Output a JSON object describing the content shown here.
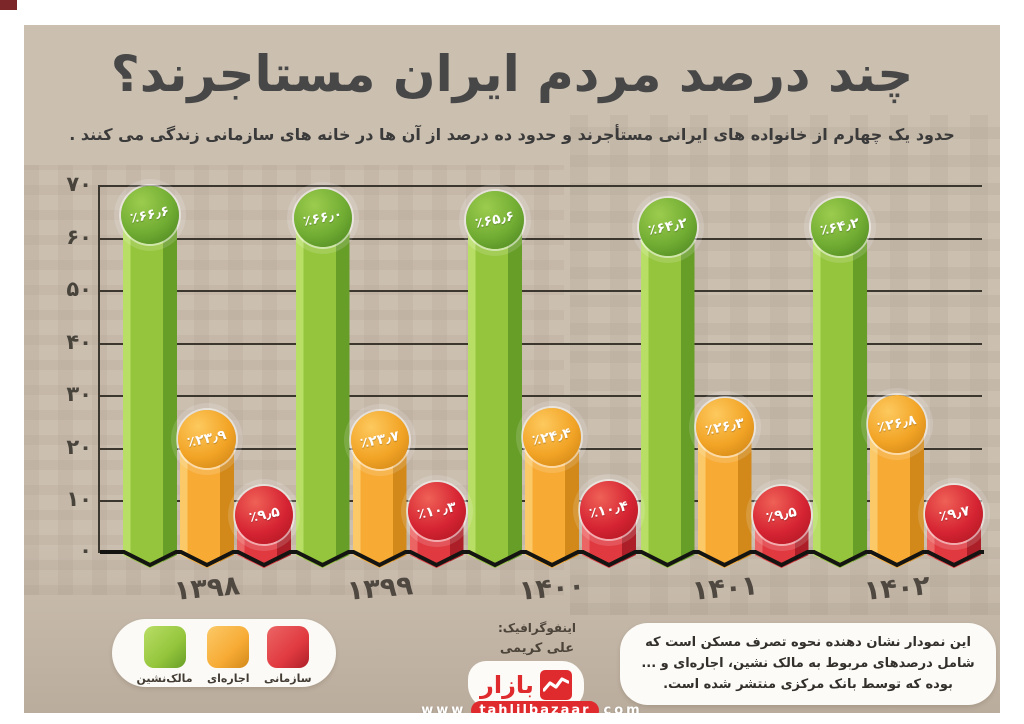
{
  "page": {
    "title": "چند درصد مردم ایران مستاجرند؟",
    "subtitle": "حدود یک چهارم از خانواده های ایرانی مستأجرند و حدود ده درصد از آن ها در خانه های سازمانی زندگی می کنند .",
    "credit_label": "اینفوگرافیک:",
    "credit_name": "علی کریمی",
    "note": "این نمودار نشان دهنده نحوه تصرف مسکن است که شامل درصدهای مربوط به مالک نشین، اجاره‌ای و ... بوده که توسط بانک مرکزی منتشر شده است.",
    "logo_text": "بازار",
    "url_www": "www",
    "url_domain": "tahlilbazaar",
    "url_tld": "com"
  },
  "colors": {
    "background": "#cbbfb0",
    "title_text": "#474747",
    "gridline": "#3b372f",
    "zigzag": "#141412",
    "logo_red": "#df2b2e"
  },
  "chart_data": {
    "type": "bar",
    "title": "چند درصد مردم ایران مستاجرند؟",
    "xlabel": "",
    "ylabel": "",
    "ylim": [
      0,
      70
    ],
    "yticks": [
      0,
      10,
      20,
      30,
      40,
      50,
      60,
      70
    ],
    "ytick_labels": [
      "۰",
      "۱۰",
      "۲۰",
      "۳۰",
      "۴۰",
      "۵۰",
      "۶۰",
      "۷۰"
    ],
    "categories": [
      "۱۳۹۸",
      "۱۳۹۹",
      "۱۴۰۰",
      "۱۴۰۱",
      "۱۴۰۲"
    ],
    "categories_latin": [
      "1398",
      "1399",
      "1400",
      "1401",
      "1402"
    ],
    "grid": true,
    "legend_position": "bottom-left",
    "series": [
      {
        "key": "owner",
        "name": "مالک‌نشین",
        "values": [
          66.6,
          66.0,
          65.6,
          64.2,
          64.2
        ],
        "labels": [
          "٪۶۶٫۶",
          "٪۶۶٫۰",
          "٪۶۵٫۶",
          "٪۶۴٫۲",
          "٪۶۴٫۲"
        ],
        "color": "#94c53c",
        "color_light": "#b9de66",
        "color_dark": "#679e28",
        "bubble": "#71ad33",
        "bubble_light": "#9ccc4e",
        "bubble_dark": "#47801f"
      },
      {
        "key": "rental",
        "name": "اجاره‌ای",
        "values": [
          23.9,
          23.7,
          24.4,
          26.3,
          26.8
        ],
        "labels": [
          "٪۲۳٫۹",
          "٪۲۳٫۷",
          "٪۲۴٫۴",
          "٪۲۶٫۳",
          "٪۲۶٫۸"
        ],
        "color": "#f7ab35",
        "color_light": "#fbc967",
        "color_dark": "#d2891a",
        "bubble": "#f2a426",
        "bubble_light": "#fdc95e",
        "bubble_dark": "#c97f12"
      },
      {
        "key": "organizational",
        "name": "سازمانی",
        "values": [
          9.5,
          10.3,
          10.4,
          9.5,
          9.7
        ],
        "labels": [
          "٪۹٫۵",
          "٪۱۰٫۳",
          "٪۱۰٫۴",
          "٪۹٫۵",
          "٪۹٫۷"
        ],
        "color": "#e03a40",
        "color_light": "#ec6565",
        "color_dark": "#ad1f28",
        "bubble": "#d62433",
        "bubble_light": "#ef6156",
        "bubble_dark": "#a8141f"
      }
    ]
  }
}
